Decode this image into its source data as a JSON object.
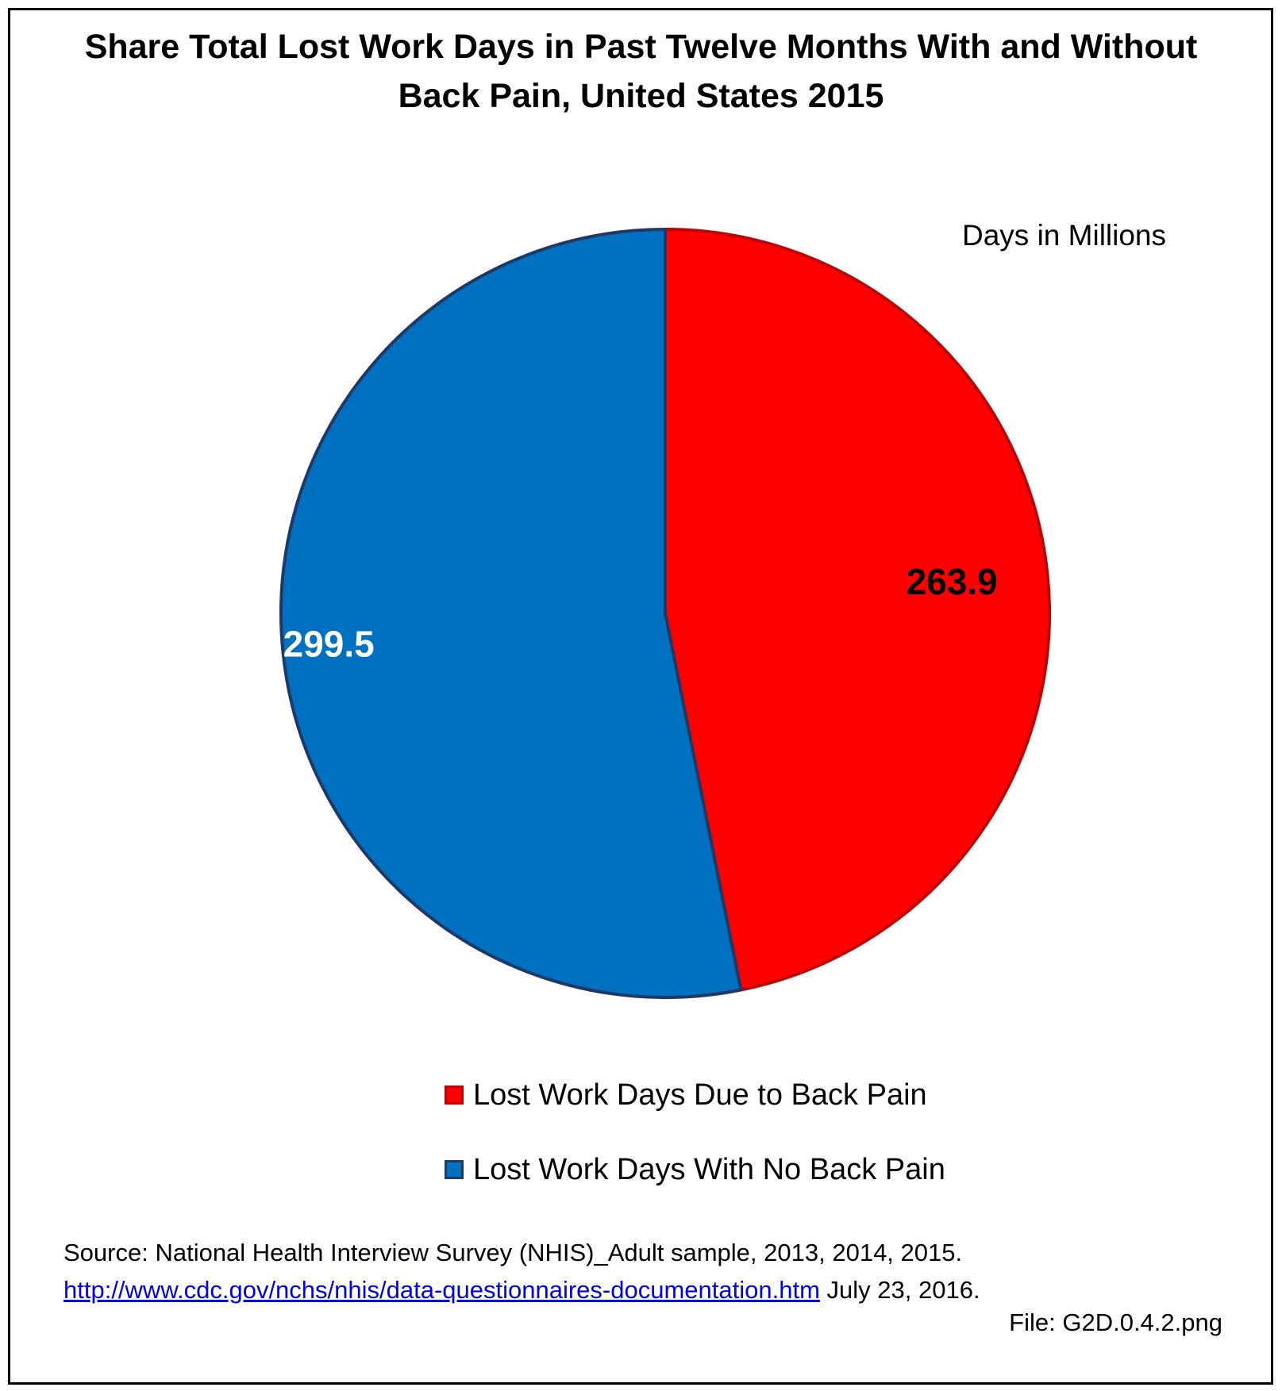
{
  "chart_data": {
    "type": "pie",
    "title": "Share Total Lost Work Days in Past Twelve Months With and Without Back Pain, United States 2015",
    "unit_note": "Days in Millions",
    "slices": [
      {
        "label": "Lost Work Days Due to Back Pain",
        "value": 263.9,
        "value_label": "263.9",
        "color": "#ff0000",
        "border": "#c00000",
        "label_color": "#000000"
      },
      {
        "label": "Lost Work Days With No Back Pain",
        "value": 299.5,
        "value_label": "299.5",
        "color": "#0070c0",
        "border": "#1f3864",
        "label_color": "#ffffff"
      }
    ],
    "start": "12 o'clock",
    "direction": "clockwise",
    "legend_position": "bottom"
  },
  "source": {
    "prefix": "Source: National Health Interview Survey (NHIS)_Adult sample, 2013, 2014, 2015.",
    "link_text": "http://www.cdc.gov/nchs/nhis/data-questionnaires-documentation.htm",
    "suffix": "July 23, 2016."
  },
  "file_note": "File: G2D.0.4.2.png"
}
